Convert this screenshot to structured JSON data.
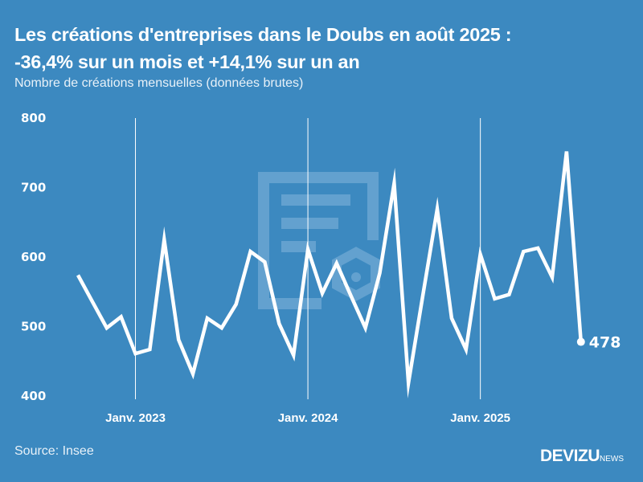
{
  "header": {
    "title_line1": "Les créations d'entreprises dans le Doubs en août 2025 :",
    "title_line2": "-36,4% sur un mois et +14,1% sur un an",
    "subtitle": "Nombre de créations mensuelles (données brutes)"
  },
  "footer": {
    "source": "Source: Insee",
    "brand": "DEVIZU",
    "brand_suffix": "NEWS"
  },
  "colors": {
    "background": "#3c89c0",
    "line": "#ffffff",
    "watermark": "#6aa6d2"
  },
  "chart_data": {
    "type": "line",
    "title": "Les créations d'entreprises dans le Doubs en août 2025 : -36,4% sur un mois et +14,1% sur un an",
    "subtitle": "Nombre de créations mensuelles (données brutes)",
    "xlabel": "",
    "ylabel": "",
    "ylim": [
      400,
      800
    ],
    "yticks": [
      800,
      700,
      600,
      500,
      400
    ],
    "xtick_labels": [
      {
        "label": "Janv. 2023",
        "month": "2023-01"
      },
      {
        "label": "Janv. 2024",
        "month": "2024-01"
      },
      {
        "label": "Janv. 2025",
        "month": "2025-01"
      }
    ],
    "grid": "vertical lines at January",
    "legend": "none",
    "x": [
      "2022-09",
      "2022-10",
      "2022-11",
      "2022-12",
      "2023-01",
      "2023-02",
      "2023-03",
      "2023-04",
      "2023-05",
      "2023-06",
      "2023-07",
      "2023-08",
      "2023-09",
      "2023-10",
      "2023-11",
      "2023-12",
      "2024-01",
      "2024-02",
      "2024-03",
      "2024-04",
      "2024-05",
      "2024-06",
      "2024-07",
      "2024-08",
      "2024-09",
      "2024-10",
      "2024-11",
      "2024-12",
      "2025-01",
      "2025-02",
      "2025-03",
      "2025-04",
      "2025-05",
      "2025-06",
      "2025-07",
      "2025-08"
    ],
    "series": [
      {
        "name": "Créations d'entreprises (Doubs)",
        "values": [
          574,
          536,
          498,
          514,
          461,
          467,
          625,
          481,
          432,
          512,
          498,
          532,
          608,
          593,
          504,
          459,
          611,
          548,
          591,
          544,
          498,
          577,
          706,
          419,
          545,
          669,
          512,
          467,
          604,
          540,
          546,
          608,
          613,
          571,
          752,
          478
        ]
      }
    ],
    "annotations": [
      {
        "label": "478",
        "month": "2025-08",
        "value": 478
      }
    ]
  }
}
